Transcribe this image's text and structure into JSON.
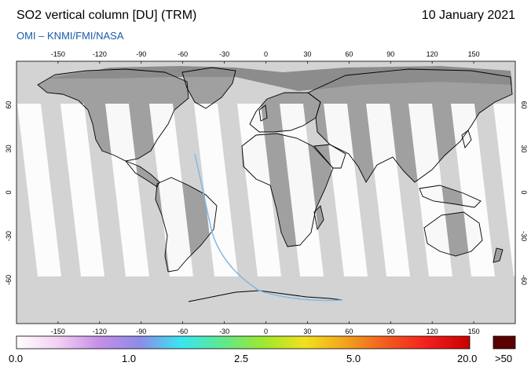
{
  "header": {
    "title": "SO2 vertical column [DU] (TRM)",
    "date": "10 January 2021",
    "credit": "OMI  –  KNMI/FMI/NASA"
  },
  "map": {
    "projection": "equirectangular",
    "lon_ticks": [
      "-150",
      "-120",
      "-90",
      "-60",
      "-30",
      "0",
      "30",
      "60",
      "90",
      "120",
      "150"
    ],
    "lat_ticks": [
      "60",
      "30",
      "0",
      "-30",
      "-60"
    ],
    "colors": {
      "no_data": "#d3d3d3",
      "land_no_data": "#a0a0a0",
      "land_polar": "#8c8c8c",
      "coastline": "#000000",
      "swath": "#ffffff",
      "trace": "#7fb6e6"
    }
  },
  "colorbar": {
    "labels": [
      "0.0",
      "1.0",
      "2.5",
      "5.0",
      "20.0"
    ],
    "overflow_label": ">50",
    "overflow_color": "#5a0000",
    "stops": [
      "#ffffff",
      "#f3d0f3",
      "#c68ee8",
      "#8c8ce8",
      "#38e6f2",
      "#5fe88e",
      "#9ee82e",
      "#f2e01e",
      "#f2a21e",
      "#f2591e",
      "#f21e1e",
      "#c80000"
    ]
  }
}
